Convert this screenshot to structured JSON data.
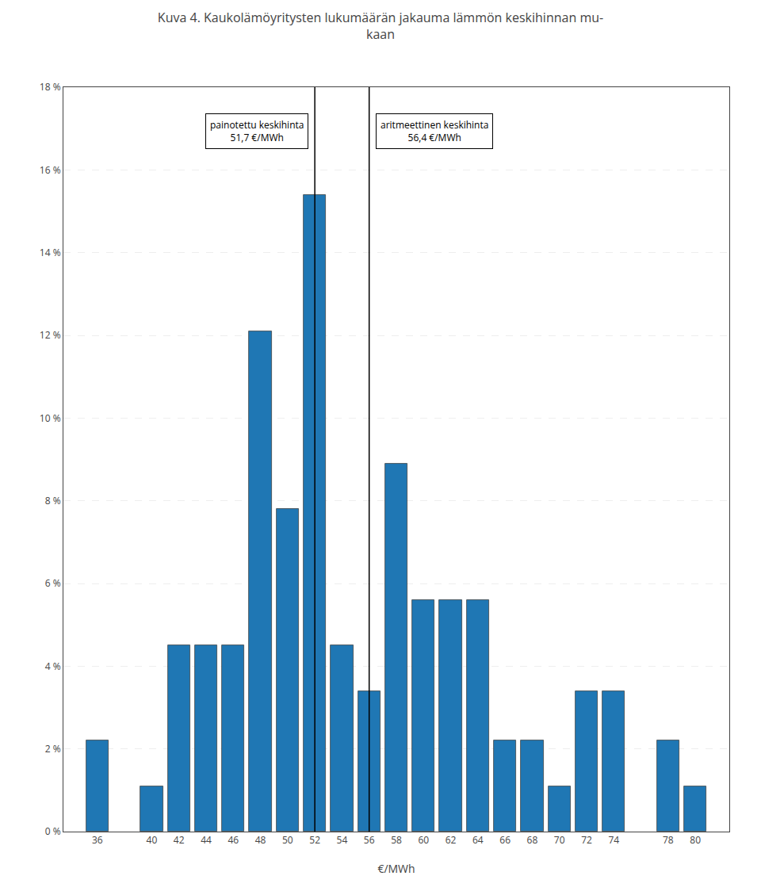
{
  "chart_data": {
    "type": "bar",
    "title": "Kuva 4. Kaukolämöyritysten lukumäärän jakauma lämmön keskihinnan mu-\nkaan",
    "xlabel": "€/MWh",
    "x": [
      36,
      40,
      42,
      44,
      46,
      48,
      50,
      52,
      54,
      56,
      58,
      60,
      62,
      64,
      66,
      68,
      70,
      72,
      74,
      78,
      80
    ],
    "values": [
      2.2,
      1.1,
      4.5,
      4.5,
      4.5,
      12.1,
      7.8,
      15.4,
      4.5,
      3.4,
      8.9,
      5.6,
      5.6,
      5.6,
      2.2,
      2.2,
      1.1,
      3.4,
      3.4,
      2.2,
      1.1
    ],
    "xlim": [
      33.5,
      82.5
    ],
    "xticks": [
      36,
      40,
      42,
      44,
      46,
      48,
      50,
      52,
      54,
      56,
      58,
      60,
      62,
      64,
      66,
      68,
      70,
      72,
      74,
      78,
      80
    ],
    "ylim": [
      0,
      18
    ],
    "yticks": [
      {
        "value": 0,
        "label": "0 %"
      },
      {
        "value": 2,
        "label": "2 %"
      },
      {
        "value": 4,
        "label": "4 %"
      },
      {
        "value": 6,
        "label": "6 %"
      },
      {
        "value": 8,
        "label": "8 %"
      },
      {
        "value": 10,
        "label": "10 %"
      },
      {
        "value": 12,
        "label": "12 %"
      },
      {
        "value": 14,
        "label": "14 %"
      },
      {
        "value": 16,
        "label": "16 %"
      },
      {
        "value": 18,
        "label": "18 %"
      }
    ],
    "grid": true,
    "annotations": [
      {
        "text": "painotettu keskihinta\n51,7 €/MWh",
        "x": 52
      },
      {
        "text": "aritmeettinen keskihinta\n56,4 €/MWh",
        "x": 56
      }
    ]
  }
}
